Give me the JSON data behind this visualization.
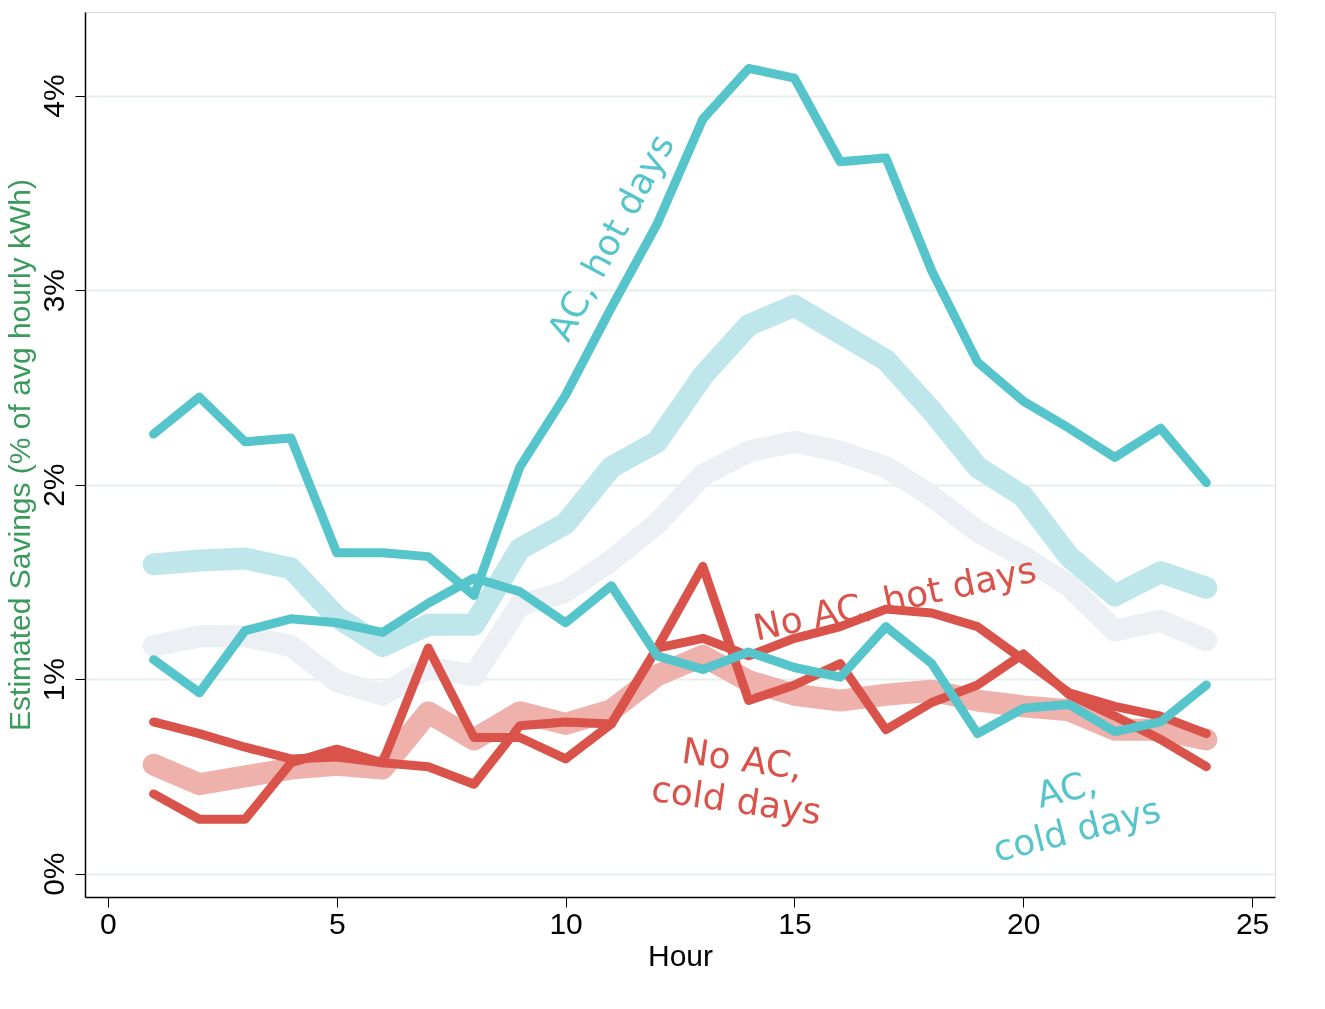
{
  "chart_data": {
    "type": "line",
    "xlabel": "Hour",
    "ylabel": "Estimated Savings (% of avg hourly kWh)",
    "x": [
      1,
      2,
      3,
      4,
      5,
      6,
      7,
      8,
      9,
      10,
      11,
      12,
      13,
      14,
      15,
      16,
      17,
      18,
      19,
      20,
      21,
      22,
      23,
      24
    ],
    "xlim": [
      -0.5,
      25.5
    ],
    "ylim": [
      -0.12,
      4.43
    ],
    "xticks": [
      0,
      5,
      10,
      15,
      20,
      25
    ],
    "yticks": [
      {
        "value": 0,
        "label": "0%"
      },
      {
        "value": 1,
        "label": "1%"
      },
      {
        "value": 2,
        "label": "2%"
      },
      {
        "value": 3,
        "label": "3%"
      },
      {
        "value": 4,
        "label": "4%"
      }
    ],
    "grid": "y",
    "marker": "none",
    "line_style": "solid",
    "series": [
      {
        "color": "#eceff4",
        "values": [
          1.17,
          1.22,
          1.22,
          1.17,
          0.99,
          0.92,
          1.06,
          1.02,
          1.38,
          1.45,
          1.61,
          1.8,
          2.05,
          2.17,
          2.22,
          2.17,
          2.09,
          1.94,
          1.76,
          1.63,
          1.48,
          1.25,
          1.3,
          1.2
        ]
      },
      {
        "color": "#eeb1ac",
        "values": [
          0.56,
          0.46,
          0.5,
          0.54,
          0.56,
          0.54,
          0.83,
          0.69,
          0.83,
          0.77,
          0.84,
          1.02,
          1.12,
          0.99,
          0.92,
          0.89,
          0.92,
          0.94,
          0.89,
          0.86,
          0.84,
          0.74,
          0.74,
          0.69
        ]
      },
      {
        "color": "#bfe7eb",
        "values": [
          1.59,
          1.61,
          1.62,
          1.57,
          1.32,
          1.17,
          1.28,
          1.28,
          1.67,
          1.8,
          2.09,
          2.22,
          2.56,
          2.82,
          2.92,
          2.78,
          2.64,
          2.38,
          2.09,
          1.94,
          1.63,
          1.43,
          1.55,
          1.47
        ]
      },
      {
        "color": "#d9534a",
        "values": [
          0.41,
          0.28,
          0.28,
          0.57,
          0.64,
          0.57,
          1.16,
          0.7,
          0.7,
          0.59,
          0.77,
          1.16,
          1.58,
          0.89,
          0.97,
          1.08,
          0.74,
          0.88,
          0.97,
          1.13,
          0.92,
          0.81,
          0.69,
          0.55
        ]
      },
      {
        "color": "#d9534a",
        "values": [
          0.78,
          0.72,
          0.65,
          0.59,
          0.6,
          0.57,
          0.55,
          0.46,
          0.76,
          0.78,
          0.77,
          1.16,
          1.21,
          1.12,
          1.21,
          1.27,
          1.36,
          1.34,
          1.27,
          1.1,
          0.93,
          0.86,
          0.81,
          0.72
        ]
      },
      {
        "color": "#56c5cb",
        "values": [
          1.1,
          0.93,
          1.25,
          1.31,
          1.29,
          1.24,
          1.39,
          1.52,
          1.45,
          1.29,
          1.48,
          1.12,
          1.05,
          1.14,
          1.06,
          1.01,
          1.27,
          1.08,
          0.72,
          0.85,
          0.87,
          0.73,
          0.78,
          0.97
        ]
      },
      {
        "color": "#56c5cb",
        "values": [
          2.26,
          2.45,
          2.22,
          2.24,
          1.65,
          1.65,
          1.63,
          1.43,
          2.09,
          2.46,
          2.91,
          3.34,
          3.88,
          4.14,
          4.09,
          3.66,
          3.68,
          3.1,
          2.63,
          2.43,
          2.29,
          2.14,
          2.29,
          2.01
        ]
      }
    ],
    "annotations": [
      "No AC,\ncold days",
      "No AC, hot days",
      "AC,\ncold days",
      "AC, hot days"
    ]
  }
}
